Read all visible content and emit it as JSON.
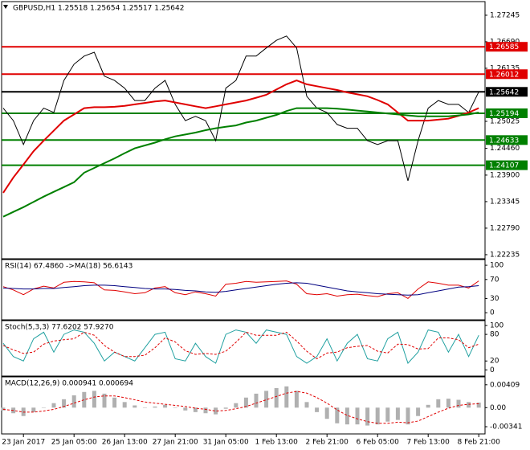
{
  "chart_data": [
    {
      "type": "line",
      "title": "GBPUSD,H1  1.25518 1.25654 1.25517 1.25642",
      "categories": [
        null,
        null,
        "23 Jan 2017",
        null,
        null,
        null,
        null,
        "25 Jan 05:00",
        null,
        null,
        null,
        null,
        "26 Jan 13:00",
        null,
        null,
        null,
        null,
        "27 Jan 21:00",
        null,
        null,
        null,
        null,
        "31 Jan 05:00",
        null,
        null,
        null,
        null,
        "1 Feb 13:00",
        null,
        null,
        null,
        null,
        "2 Feb 21:00",
        null,
        null,
        null,
        null,
        "6 Feb 05:00",
        null,
        null,
        null,
        null,
        "7 Feb 13:00",
        null,
        null,
        null,
        null,
        "8 Feb 21:00"
      ],
      "ylim": [
        1.2215,
        1.2753
      ],
      "yticks": [
        1.27245,
        {
          "value": 1.2669,
          "label": "1.26690"
        },
        1.26135,
        1.25025,
        {
          "value": 1.2446,
          "label": "1.24460"
        },
        {
          "value": 1.239,
          "label": "1.23900"
        },
        1.23345,
        {
          "value": 1.2279,
          "label": "1.22790"
        },
        1.22235
      ],
      "levels": [
        {
          "value": 1.26585,
          "color": "#e00000"
        },
        {
          "value": 1.26012,
          "color": "#e00000"
        },
        {
          "value": 1.25642,
          "color": "#000000"
        },
        {
          "value": 1.25194,
          "color": "#008000"
        },
        {
          "value": 1.24633,
          "color": "#008000"
        },
        {
          "value": 1.24107,
          "color": "#008000"
        }
      ],
      "series": [
        {
          "color": "#000000",
          "width": 1,
          "values": [
            1.253,
            1.2504,
            1.2454,
            1.2504,
            1.253,
            1.2521,
            1.2588,
            1.2622,
            1.2639,
            1.2647,
            1.2597,
            1.2588,
            1.2572,
            1.2546,
            1.2546,
            1.2572,
            1.2588,
            1.2538,
            1.2504,
            1.2513,
            1.2504,
            1.2462,
            1.2572,
            1.2588,
            1.2639,
            1.2639,
            1.2656,
            1.2672,
            1.2681,
            1.2656,
            1.2555,
            1.253,
            1.2521,
            1.2496,
            1.2488,
            1.2488,
            1.2462,
            1.2454,
            1.2462,
            1.2462,
            1.2378,
            1.2462,
            1.253,
            1.2546,
            1.2538,
            1.2538,
            1.2521,
            1.25642
          ]
        },
        {
          "color": "#e00000",
          "width": 2,
          "values": [
            1.2353,
            1.2385,
            1.2412,
            1.244,
            1.2462,
            1.2483,
            1.2504,
            1.2517,
            1.253,
            1.2532,
            1.2532,
            1.2533,
            1.2535,
            1.2538,
            1.2541,
            1.2544,
            1.2546,
            1.2542,
            1.2538,
            1.2534,
            1.253,
            1.2534,
            1.2538,
            1.2542,
            1.2546,
            1.2552,
            1.2558,
            1.2569,
            1.258,
            1.2588,
            1.258,
            1.2576,
            1.2572,
            1.2568,
            1.2563,
            1.2559,
            1.2555,
            1.2547,
            1.2538,
            1.2521,
            1.2504,
            1.2504,
            1.2504,
            1.2506,
            1.2508,
            1.2514,
            1.2521,
            1.253
          ]
        },
        {
          "color": "#008000",
          "width": 2,
          "values": [
            1.2303,
            1.2313,
            1.2323,
            1.2334,
            1.2345,
            1.2355,
            1.2365,
            1.2375,
            1.2395,
            1.2405,
            1.2415,
            1.2425,
            1.2436,
            1.2446,
            1.2452,
            1.2458,
            1.2465,
            1.2471,
            1.2475,
            1.2479,
            1.2484,
            1.2488,
            1.2491,
            1.2494,
            1.25,
            1.2504,
            1.251,
            1.2516,
            1.2524,
            1.253,
            1.253,
            1.253,
            1.253,
            1.2529,
            1.2527,
            1.2525,
            1.2523,
            1.2521,
            1.2519,
            1.2517,
            1.2515,
            1.2513,
            1.2513,
            1.2513,
            1.2513,
            1.2515,
            1.2517,
            1.2521
          ]
        }
      ]
    },
    {
      "type": "line",
      "title": "RSI(14) 67.4860  ->MA(18) 56.6143",
      "ylim": [
        -15,
        112
      ],
      "yticks": [
        100,
        70,
        30,
        0
      ],
      "series": [
        {
          "color": "#e00000",
          "width": 1,
          "values": [
            55,
            48,
            38,
            50,
            56,
            52,
            64,
            66,
            65,
            63,
            48,
            47,
            44,
            40,
            42,
            52,
            55,
            42,
            38,
            44,
            40,
            35,
            60,
            62,
            66,
            64,
            65,
            66,
            67,
            60,
            40,
            38,
            40,
            35,
            38,
            39,
            36,
            34,
            40,
            42,
            30,
            50,
            65,
            62,
            58,
            58,
            52,
            67
          ]
        },
        {
          "color": "#000080",
          "width": 1,
          "values": [
            52,
            51,
            50,
            50,
            51,
            51,
            53,
            55,
            57,
            58,
            58,
            57,
            55,
            53,
            51,
            50,
            50,
            49,
            47,
            46,
            44,
            43,
            45,
            48,
            51,
            54,
            57,
            60,
            62,
            63,
            62,
            58,
            54,
            50,
            46,
            44,
            42,
            40,
            39,
            38,
            37,
            38,
            42,
            46,
            50,
            54,
            55,
            57
          ]
        }
      ]
    },
    {
      "type": "line",
      "title": "Stoch(5,3,3) 77.6202 57.9270",
      "ylim": [
        -14,
        111
      ],
      "yticks": [
        100,
        80,
        20,
        0
      ],
      "series": [
        {
          "color": "#20a0a0",
          "width": 1,
          "values": [
            60,
            30,
            20,
            70,
            85,
            40,
            80,
            90,
            85,
            60,
            20,
            40,
            30,
            20,
            50,
            80,
            85,
            25,
            20,
            60,
            30,
            15,
            80,
            90,
            85,
            60,
            90,
            85,
            80,
            30,
            15,
            30,
            70,
            20,
            60,
            80,
            25,
            20,
            70,
            85,
            15,
            40,
            90,
            85,
            40,
            80,
            30,
            78
          ]
        },
        {
          "color": "#e00000",
          "width": 1,
          "dash": true,
          "values": [
            55,
            45,
            37,
            40,
            58,
            65,
            68,
            70,
            85,
            78,
            55,
            40,
            30,
            30,
            33,
            50,
            72,
            63,
            43,
            35,
            37,
            35,
            42,
            62,
            85,
            78,
            78,
            78,
            85,
            65,
            42,
            25,
            38,
            40,
            50,
            53,
            55,
            42,
            38,
            58,
            57,
            47,
            48,
            72,
            72,
            68,
            50,
            58
          ]
        }
      ]
    },
    {
      "type": "macd",
      "title": "MACD(12,26,9) 0.000941 0.000694",
      "ylim": [
        -0.0047,
        0.0055
      ],
      "yticks": [
        0.00409,
        {
          "value": 0,
          "label": "0.00"
        },
        -0.00341
      ],
      "series": [
        {
          "color": "#b0b0b0",
          "values": [
            -0.0005,
            -0.001,
            -0.0015,
            -0.0008,
            0.0,
            0.0008,
            0.0015,
            0.0022,
            0.0028,
            0.003,
            0.0025,
            0.0018,
            0.001,
            0.0004,
            0.0,
            0.0002,
            0.0005,
            0.0,
            -0.0005,
            -0.0008,
            -0.001,
            -0.0012,
            -0.0002,
            0.0008,
            0.0018,
            0.0025,
            0.003,
            0.0035,
            0.0038,
            0.003,
            0.001,
            -0.0008,
            -0.002,
            -0.0028,
            -0.003,
            -0.003,
            -0.0032,
            -0.003,
            -0.0025,
            -0.0022,
            -0.003,
            -0.0015,
            0.0005,
            0.0015,
            0.0016,
            0.0014,
            0.001,
            0.0009
          ]
        },
        {
          "color": "#e00000",
          "dash": true,
          "values": [
            -0.0003,
            -0.0005,
            -0.0008,
            -0.0008,
            -0.0006,
            -0.0003,
            0.0002,
            0.0008,
            0.0014,
            0.0019,
            0.0021,
            0.0021,
            0.0018,
            0.0014,
            0.001,
            0.0008,
            0.0006,
            0.0004,
            0.0002,
            -0.0001,
            -0.0003,
            -0.0006,
            -0.0005,
            -0.0002,
            0.0002,
            0.0008,
            0.0014,
            0.002,
            0.0026,
            0.0029,
            0.0026,
            0.0018,
            0.0008,
            -0.0004,
            -0.0014,
            -0.002,
            -0.0025,
            -0.0028,
            -0.0028,
            -0.0026,
            -0.0027,
            -0.0024,
            -0.0016,
            -0.0008,
            -0.0001,
            0.0004,
            0.0006,
            0.0007
          ]
        }
      ]
    }
  ]
}
